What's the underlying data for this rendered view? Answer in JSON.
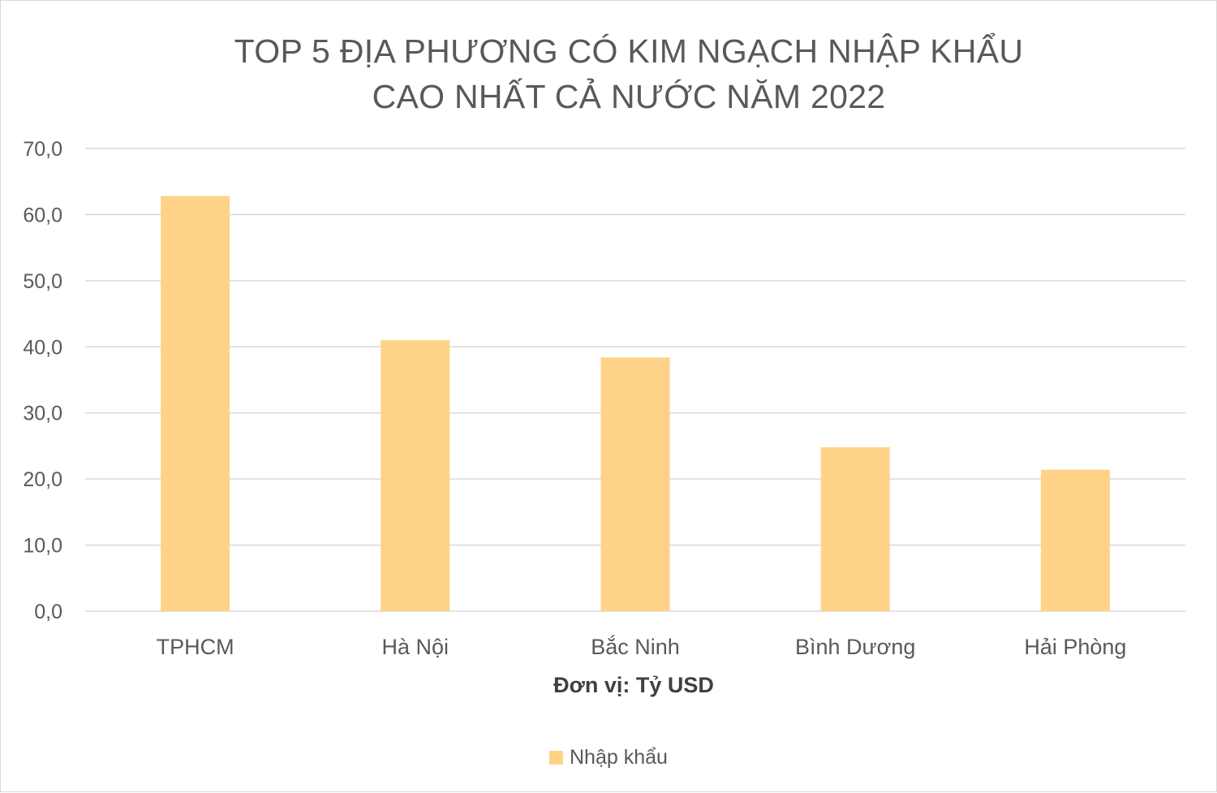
{
  "chart_data": {
    "type": "bar",
    "title_lines": [
      "TOP 5 ĐỊA PHƯƠNG CÓ KIM NGẠCH NHẬP KHẨU",
      "CAO NHẤT CẢ NƯỚC NĂM 2022"
    ],
    "categories": [
      "TPHCM",
      "Hà Nội",
      "Bắc Ninh",
      "Bình Dương",
      "Hải Phòng"
    ],
    "series": [
      {
        "name": "Nhập khẩu",
        "values": [
          62.8,
          41.0,
          38.4,
          24.8,
          21.4
        ],
        "color": "#ffd387"
      }
    ],
    "xlabel": "Đơn vị: Tỷ USD",
    "ylabel": "",
    "ylim": [
      0,
      70
    ],
    "yticks": [
      "0,0",
      "10,0",
      "20,0",
      "30,0",
      "40,0",
      "50,0",
      "60,0",
      "70,0"
    ],
    "grid": true,
    "legend_position": "bottom",
    "colors": {
      "bar": "#ffd387",
      "grid": "#d9d9d9",
      "text": "#595959"
    }
  }
}
